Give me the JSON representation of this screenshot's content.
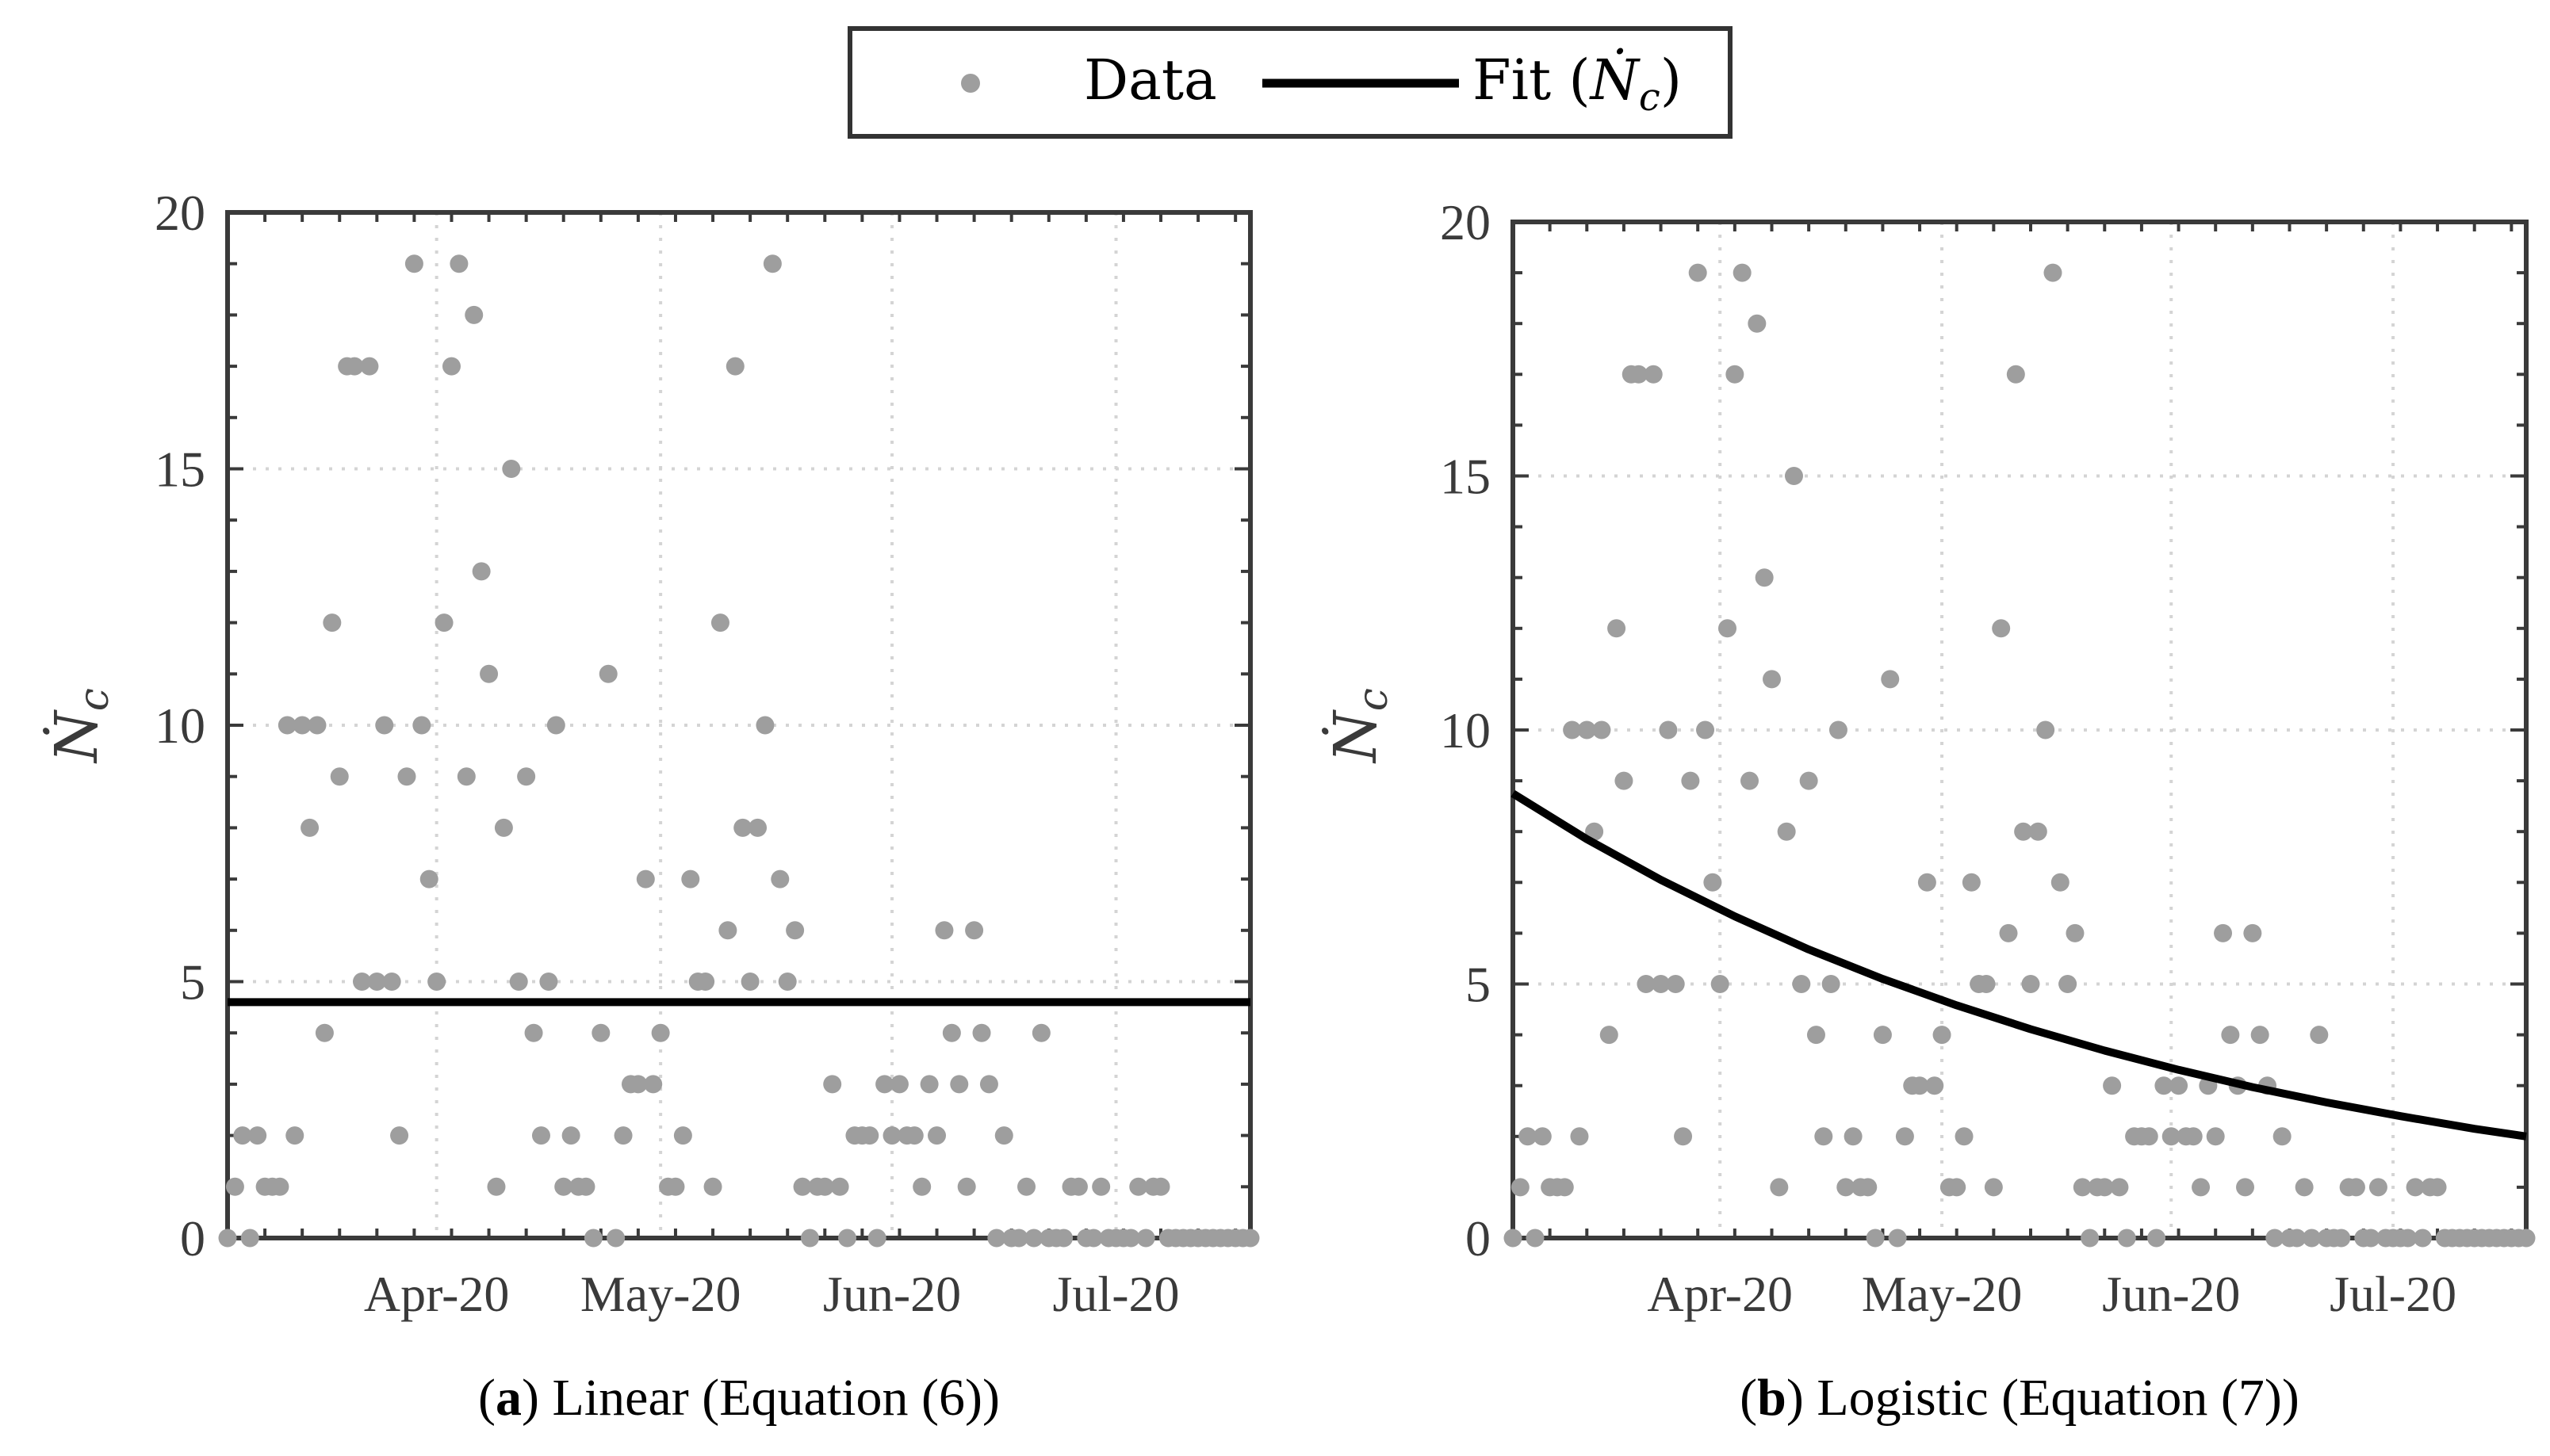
{
  "legend": {
    "data_label": "Data",
    "fit_label_prefix": "Fit (",
    "fit_symbol": "Ṅ",
    "fit_subscript": "c",
    "fit_label_suffix": ")"
  },
  "colors": {
    "data_point": "#9e9e9e",
    "fit_line": "#000000",
    "axis": "#3a3a3a",
    "grid": "#d4d4d4"
  },
  "chart_data": [
    {
      "type": "scatter",
      "panel": "a",
      "caption_letter": "a",
      "caption_open": "(",
      "caption_close": ")",
      "caption_text": " Linear (Equation (6))",
      "ylabel": "Ṅc",
      "ylabel_symbol": "Ṅ",
      "ylabel_subscript": "c",
      "xlabel": "",
      "ylim": [
        0,
        20
      ],
      "xlim": [
        0,
        137
      ],
      "yticks": [
        0,
        5,
        10,
        15,
        20
      ],
      "ytick_labels": [
        "0",
        "5",
        "10",
        "15",
        "20"
      ],
      "xticks": [
        28,
        58,
        89,
        119
      ],
      "xtick_labels": [
        "Apr-20",
        "May-20",
        "Jun-20",
        "Jul-20"
      ],
      "grid": true,
      "series": [
        {
          "name": "Data",
          "x": [
            0,
            1,
            2,
            3,
            4,
            5,
            6,
            7,
            8,
            9,
            10,
            11,
            12,
            13,
            14,
            15,
            16,
            17,
            18,
            19,
            20,
            21,
            22,
            23,
            24,
            25,
            26,
            27,
            28,
            29,
            30,
            31,
            32,
            33,
            34,
            35,
            36,
            37,
            38,
            39,
            40,
            41,
            42,
            43,
            44,
            45,
            46,
            47,
            48,
            49,
            50,
            51,
            52,
            53,
            54,
            55,
            56,
            57,
            58,
            59,
            60,
            61,
            62,
            63,
            64,
            65,
            66,
            67,
            68,
            69,
            70,
            71,
            72,
            73,
            74,
            75,
            76,
            77,
            78,
            79,
            80,
            81,
            82,
            83,
            84,
            85,
            86,
            87,
            88,
            89,
            90,
            91,
            92,
            93,
            94,
            95,
            96,
            97,
            98,
            99,
            100,
            101,
            102,
            103,
            104,
            105,
            106,
            107,
            108,
            109,
            110,
            111,
            112,
            113,
            114,
            115,
            116,
            117,
            118,
            119,
            120,
            121,
            122,
            123,
            124,
            125,
            126,
            127,
            128,
            129,
            130,
            131,
            132,
            133,
            134,
            135,
            136,
            137
          ],
          "y": [
            0,
            1,
            2,
            0,
            2,
            1,
            1,
            1,
            10,
            2,
            10,
            8,
            10,
            4,
            12,
            9,
            17,
            17,
            5,
            17,
            5,
            10,
            5,
            2,
            9,
            19,
            10,
            7,
            5,
            12,
            17,
            19,
            9,
            18,
            13,
            11,
            1,
            8,
            15,
            5,
            9,
            4,
            2,
            5,
            10,
            1,
            2,
            1,
            1,
            0,
            4,
            11,
            0,
            2,
            3,
            3,
            7,
            3,
            4,
            1,
            1,
            2,
            7,
            5,
            5,
            1,
            12,
            6,
            17,
            8,
            5,
            8,
            10,
            19,
            7,
            5,
            6,
            1,
            0,
            1,
            1,
            3,
            1,
            0,
            2,
            2,
            2,
            0,
            3,
            2,
            3,
            2,
            2,
            1,
            3,
            2,
            6,
            4,
            3,
            1,
            6,
            4,
            3,
            0,
            2,
            0,
            0,
            1,
            0,
            4,
            0,
            0,
            0,
            1,
            1,
            0,
            0,
            1,
            0,
            0,
            0,
            0,
            1,
            0,
            1,
            1,
            0,
            0,
            0,
            0,
            0,
            0,
            0,
            0,
            0,
            0,
            0,
            0
          ]
        },
        {
          "name": "Fit (Ṅc)",
          "x": [
            0,
            137
          ],
          "y": [
            4.6,
            4.6
          ]
        }
      ]
    },
    {
      "type": "scatter",
      "panel": "b",
      "caption_letter": "b",
      "caption_open": "(",
      "caption_close": ")",
      "caption_text": " Logistic (Equation (7))",
      "ylabel": "Ṅc",
      "ylabel_symbol": "Ṅ",
      "ylabel_subscript": "c",
      "xlabel": "",
      "ylim": [
        0,
        20
      ],
      "xlim": [
        0,
        137
      ],
      "yticks": [
        0,
        5,
        10,
        15,
        20
      ],
      "ytick_labels": [
        "0",
        "5",
        "10",
        "15",
        "20"
      ],
      "xticks": [
        28,
        58,
        89,
        119
      ],
      "xtick_labels": [
        "Apr-20",
        "May-20",
        "Jun-20",
        "Jul-20"
      ],
      "grid": true,
      "series": [
        {
          "name": "Data",
          "x": [
            0,
            1,
            2,
            3,
            4,
            5,
            6,
            7,
            8,
            9,
            10,
            11,
            12,
            13,
            14,
            15,
            16,
            17,
            18,
            19,
            20,
            21,
            22,
            23,
            24,
            25,
            26,
            27,
            28,
            29,
            30,
            31,
            32,
            33,
            34,
            35,
            36,
            37,
            38,
            39,
            40,
            41,
            42,
            43,
            44,
            45,
            46,
            47,
            48,
            49,
            50,
            51,
            52,
            53,
            54,
            55,
            56,
            57,
            58,
            59,
            60,
            61,
            62,
            63,
            64,
            65,
            66,
            67,
            68,
            69,
            70,
            71,
            72,
            73,
            74,
            75,
            76,
            77,
            78,
            79,
            80,
            81,
            82,
            83,
            84,
            85,
            86,
            87,
            88,
            89,
            90,
            91,
            92,
            93,
            94,
            95,
            96,
            97,
            98,
            99,
            100,
            101,
            102,
            103,
            104,
            105,
            106,
            107,
            108,
            109,
            110,
            111,
            112,
            113,
            114,
            115,
            116,
            117,
            118,
            119,
            120,
            121,
            122,
            123,
            124,
            125,
            126,
            127,
            128,
            129,
            130,
            131,
            132,
            133,
            134,
            135,
            136,
            137
          ],
          "y": [
            0,
            1,
            2,
            0,
            2,
            1,
            1,
            1,
            10,
            2,
            10,
            8,
            10,
            4,
            12,
            9,
            17,
            17,
            5,
            17,
            5,
            10,
            5,
            2,
            9,
            19,
            10,
            7,
            5,
            12,
            17,
            19,
            9,
            18,
            13,
            11,
            1,
            8,
            15,
            5,
            9,
            4,
            2,
            5,
            10,
            1,
            2,
            1,
            1,
            0,
            4,
            11,
            0,
            2,
            3,
            3,
            7,
            3,
            4,
            1,
            1,
            2,
            7,
            5,
            5,
            1,
            12,
            6,
            17,
            8,
            5,
            8,
            10,
            19,
            7,
            5,
            6,
            1,
            0,
            1,
            1,
            3,
            1,
            0,
            2,
            2,
            2,
            0,
            3,
            2,
            3,
            2,
            2,
            1,
            3,
            2,
            6,
            4,
            3,
            1,
            6,
            4,
            3,
            0,
            2,
            0,
            0,
            1,
            0,
            4,
            0,
            0,
            0,
            1,
            1,
            0,
            0,
            1,
            0,
            0,
            0,
            0,
            1,
            0,
            1,
            1,
            0,
            0,
            0,
            0,
            0,
            0,
            0,
            0,
            0,
            0,
            0,
            0
          ]
        },
        {
          "name": "Fit (Ṅc)",
          "x": [
            0,
            10,
            20,
            30,
            40,
            50,
            60,
            70,
            80,
            90,
            100,
            110,
            120,
            130,
            137
          ],
          "y": [
            8.75,
            7.85,
            7.05,
            6.33,
            5.68,
            5.1,
            4.58,
            4.11,
            3.69,
            3.31,
            2.97,
            2.67,
            2.4,
            2.15,
            2.0
          ]
        }
      ]
    }
  ]
}
